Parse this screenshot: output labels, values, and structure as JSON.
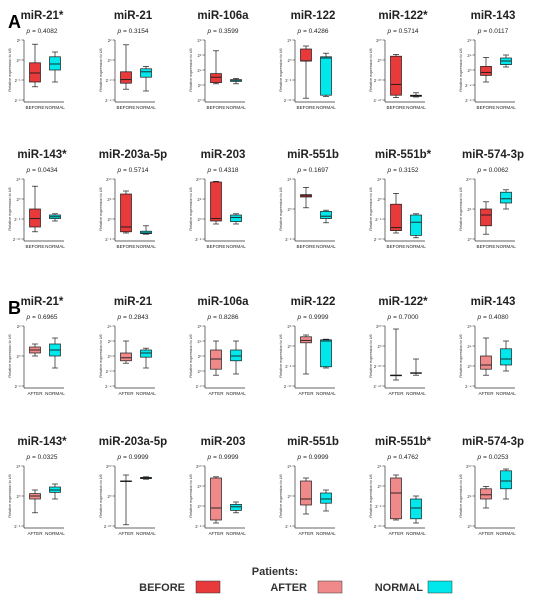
{
  "panels": [
    {
      "label": "A",
      "rows": [
        [
          {
            "title": "miR-21*",
            "p": "0.4082",
            "ylabel": "Relative expression to U6",
            "yticks": [
              "2¹",
              "2⁰",
              "2⁻¹",
              "2⁻²"
            ],
            "groups": [
              {
                "name": "BEFORE",
                "style": "before",
                "min": 0.22,
                "q1": 0.3,
                "median": 0.45,
                "q3": 0.62,
                "max": 0.93
              },
              {
                "name": "NORMAL",
                "style": "normal",
                "min": 0.3,
                "q1": 0.5,
                "median": 0.6,
                "q3": 0.72,
                "max": 0.8
              }
            ]
          },
          {
            "title": "miR-21",
            "p": "0.3154",
            "ylabel": "Relative expression to U6",
            "yticks": [
              "2²",
              "2⁰",
              "2⁻²",
              "2⁻⁴"
            ],
            "groups": [
              {
                "name": "BEFORE",
                "style": "before",
                "min": 0.18,
                "q1": 0.28,
                "median": 0.34,
                "q3": 0.47,
                "max": 0.92
              },
              {
                "name": "NORMAL",
                "style": "normal",
                "min": 0.15,
                "q1": 0.38,
                "median": 0.47,
                "q3": 0.52,
                "max": 0.56
              }
            ]
          },
          {
            "title": "miR-106a",
            "p": "0.3599",
            "ylabel": "Relative expression to U6",
            "yticks": [
              "2⁸",
              "2⁶",
              "2⁴",
              "2²",
              "2⁰"
            ],
            "groups": [
              {
                "name": "BEFORE",
                "style": "before",
                "min": 0.27,
                "q1": 0.29,
                "median": 0.38,
                "q3": 0.44,
                "max": 0.82
              },
              {
                "name": "NORMAL",
                "style": "normal",
                "min": 0.27,
                "q1": 0.31,
                "median": 0.33,
                "q3": 0.34,
                "max": 0.36
              }
            ]
          },
          {
            "title": "miR-122",
            "p": "0.4286",
            "ylabel": "Relative expression to U6",
            "yticks": [
              "2⁵",
              "2⁰",
              "2⁻⁵",
              "2⁻¹⁰"
            ],
            "groups": [
              {
                "name": "BEFORE",
                "style": "before",
                "min": 0.03,
                "q1": 0.65,
                "median": 0.65,
                "q3": 0.85,
                "max": 0.9
              },
              {
                "name": "NORMAL",
                "style": "normal",
                "min": 0.06,
                "q1": 0.08,
                "median": 0.7,
                "q3": 0.72,
                "max": 0.78
              }
            ]
          },
          {
            "title": "miR-122*",
            "p": "0.5714",
            "ylabel": "Relative expression to U6",
            "yticks": [
              "2²⁰",
              "2⁰",
              "2⁻²⁰",
              "2⁻⁴⁰"
            ],
            "groups": [
              {
                "name": "BEFORE",
                "style": "before",
                "min": 0.04,
                "q1": 0.08,
                "median": 0.26,
                "q3": 0.73,
                "max": 0.76
              },
              {
                "name": "NORMAL",
                "style": "normal",
                "min": 0.05,
                "q1": 0.06,
                "median": 0.07,
                "q3": 0.08,
                "max": 0.12
              }
            ]
          },
          {
            "title": "miR-143",
            "p": "0.0117",
            "ylabel": "Relative expression to U6",
            "yticks": [
              "2⁸",
              "2⁴",
              "2⁰",
              "2⁻⁴",
              "2⁻⁸"
            ],
            "groups": [
              {
                "name": "BEFORE",
                "style": "before",
                "min": 0.3,
                "q1": 0.41,
                "median": 0.46,
                "q3": 0.56,
                "max": 0.71
              },
              {
                "name": "NORMAL",
                "style": "normal",
                "min": 0.55,
                "q1": 0.59,
                "median": 0.65,
                "q3": 0.7,
                "max": 0.75
              }
            ]
          }
        ],
        [
          {
            "title": "miR-143*",
            "p": "0.0434",
            "ylabel": "Relative expression to U6",
            "yticks": [
              "2⁵",
              "2⁰",
              "2⁻⁵",
              "2⁻¹⁰"
            ],
            "groups": [
              {
                "name": "BEFORE",
                "style": "before",
                "min": 0.12,
                "q1": 0.2,
                "median": 0.34,
                "q3": 0.5,
                "max": 0.88
              },
              {
                "name": "NORMAL",
                "style": "normal",
                "min": 0.3,
                "q1": 0.34,
                "median": 0.37,
                "q3": 0.4,
                "max": 0.42
              }
            ]
          },
          {
            "title": "miR-203a-5p",
            "p": "0.5714",
            "ylabel": "Relative expression to U6",
            "yticks": [
              "2¹⁰",
              "2⁵",
              "2⁰",
              "2⁻⁵"
            ],
            "groups": [
              {
                "name": "BEFORE",
                "style": "before",
                "min": 0.1,
                "q1": 0.12,
                "median": 0.2,
                "q3": 0.75,
                "max": 0.8
              },
              {
                "name": "NORMAL",
                "style": "normal",
                "min": 0.08,
                "q1": 0.09,
                "median": 0.1,
                "q3": 0.13,
                "max": 0.22
              }
            ]
          },
          {
            "title": "miR-203",
            "p": "0.4318",
            "ylabel": "Relative expression to U6",
            "yticks": [
              "2¹⁰",
              "2⁵",
              "2⁰",
              "2⁻⁵"
            ],
            "groups": [
              {
                "name": "BEFORE",
                "style": "before",
                "min": 0.25,
                "q1": 0.3,
                "median": 0.34,
                "q3": 0.95,
                "max": 0.96
              },
              {
                "name": "NORMAL",
                "style": "normal",
                "min": 0.25,
                "q1": 0.29,
                "median": 0.36,
                "q3": 0.4,
                "max": 0.42
              }
            ]
          },
          {
            "title": "miR-551b",
            "p": "0.1697",
            "ylabel": "Relative expression to U6",
            "yticks": [
              "2⁵",
              "2⁰",
              "2⁻⁵"
            ],
            "groups": [
              {
                "name": "BEFORE",
                "style": "before",
                "min": 0.52,
                "q1": 0.7,
                "median": 0.72,
                "q3": 0.74,
                "max": 0.86
              },
              {
                "name": "NORMAL",
                "style": "normal",
                "min": 0.27,
                "q1": 0.34,
                "median": 0.38,
                "q3": 0.46,
                "max": 0.48
              }
            ]
          },
          {
            "title": "miR-551b*",
            "p": "0.3152",
            "ylabel": "Relative expression to U6",
            "yticks": [
              "2⁵",
              "2⁰",
              "2⁻⁵",
              "2⁻¹⁰"
            ],
            "groups": [
              {
                "name": "BEFORE",
                "style": "before",
                "min": 0.1,
                "q1": 0.14,
                "median": 0.19,
                "q3": 0.58,
                "max": 0.76
              },
              {
                "name": "NORMAL",
                "style": "normal",
                "min": 0.02,
                "q1": 0.06,
                "median": 0.28,
                "q3": 0.4,
                "max": 0.42
              }
            ]
          },
          {
            "title": "miR-574-3p",
            "p": "0.0062",
            "ylabel": "Relative expression to U6",
            "yticks": [
              "2¹⁰",
              "2⁵",
              "2⁰"
            ],
            "groups": [
              {
                "name": "BEFORE",
                "style": "before",
                "min": 0.08,
                "q1": 0.22,
                "median": 0.4,
                "q3": 0.5,
                "max": 0.62
              },
              {
                "name": "NORMAL",
                "style": "normal",
                "min": 0.5,
                "q1": 0.6,
                "median": 0.67,
                "q3": 0.78,
                "max": 0.82
              }
            ]
          }
        ]
      ]
    },
    {
      "label": "B",
      "rows": [
        [
          {
            "title": "miR-21*",
            "p": "0.6965",
            "ylabel": "Relative expression to U6",
            "yticks": [
              "2²",
              "2⁰",
              "2⁻²"
            ],
            "groups": [
              {
                "name": "AFTER",
                "style": "after",
                "min": 0.5,
                "q1": 0.55,
                "median": 0.6,
                "q3": 0.65,
                "max": 0.7
              },
              {
                "name": "NORMAL",
                "style": "normal",
                "min": 0.3,
                "q1": 0.5,
                "median": 0.6,
                "q3": 0.7,
                "max": 0.8
              }
            ]
          },
          {
            "title": "miR-21",
            "p": "0.2843",
            "ylabel": "Relative expression to U6",
            "yticks": [
              "2⁴",
              "2²",
              "2⁰",
              "2⁻²",
              "2⁻⁴"
            ],
            "groups": [
              {
                "name": "AFTER",
                "style": "after",
                "min": 0.38,
                "q1": 0.42,
                "median": 0.47,
                "q3": 0.55,
                "max": 0.75
              },
              {
                "name": "NORMAL",
                "style": "normal",
                "min": 0.3,
                "q1": 0.48,
                "median": 0.55,
                "q3": 0.6,
                "max": 0.63
              }
            ]
          },
          {
            "title": "miR-106a",
            "p": "0.8286",
            "ylabel": "Relative expression to U6",
            "yticks": [
              "2⁶",
              "2⁴",
              "2²",
              "2⁰",
              "2⁻²"
            ],
            "groups": [
              {
                "name": "AFTER",
                "style": "after",
                "min": 0.18,
                "q1": 0.28,
                "median": 0.45,
                "q3": 0.6,
                "max": 0.75
              },
              {
                "name": "NORMAL",
                "style": "normal",
                "min": 0.2,
                "q1": 0.42,
                "median": 0.5,
                "q3": 0.6,
                "max": 0.75
              }
            ]
          },
          {
            "title": "miR-122",
            "p": "0.9999",
            "ylabel": "Relative expression to U6",
            "yticks": [
              "2⁵",
              "2⁰",
              "2⁻⁵",
              "2⁻¹⁰"
            ],
            "groups": [
              {
                "name": "AFTER",
                "style": "after",
                "min": 0.2,
                "q1": 0.72,
                "median": 0.76,
                "q3": 0.82,
                "max": 0.85
              },
              {
                "name": "NORMAL",
                "style": "normal",
                "min": 0.3,
                "q1": 0.32,
                "median": 0.75,
                "q3": 0.77,
                "max": 0.78
              }
            ]
          },
          {
            "title": "miR-122*",
            "p": "0.7000",
            "ylabel": "Relative expression to U6",
            "yticks": [
              "2²⁰",
              "2⁰",
              "2⁻²⁰",
              "2⁻⁴⁰"
            ],
            "groups": [
              {
                "name": "AFTER",
                "style": "after",
                "min": 0.1,
                "q1": 0.18,
                "median": 0.18,
                "q3": 0.18,
                "max": 0.95
              },
              {
                "name": "NORMAL",
                "style": "normal",
                "min": 0.18,
                "q1": 0.22,
                "median": 0.22,
                "q3": 0.22,
                "max": 0.45
              }
            ]
          },
          {
            "title": "miR-143",
            "p": "0.4080",
            "ylabel": "Relative expression to U6",
            "yticks": [
              "2⁸",
              "2⁴",
              "2⁰",
              "2⁻⁴"
            ],
            "groups": [
              {
                "name": "AFTER",
                "style": "after",
                "min": 0.18,
                "q1": 0.28,
                "median": 0.35,
                "q3": 0.5,
                "max": 0.8
              },
              {
                "name": "NORMAL",
                "style": "normal",
                "min": 0.25,
                "q1": 0.35,
                "median": 0.45,
                "q3": 0.62,
                "max": 0.75
              }
            ]
          }
        ],
        [
          {
            "title": "miR-143*",
            "p": "0.0325",
            "ylabel": "Relative expression to U6",
            "yticks": [
              "2⁵",
              "2⁰",
              "2⁻⁵"
            ],
            "groups": [
              {
                "name": "AFTER",
                "style": "after",
                "min": 0.22,
                "q1": 0.45,
                "median": 0.5,
                "q3": 0.54,
                "max": 0.6
              },
              {
                "name": "NORMAL",
                "style": "normal",
                "min": 0.45,
                "q1": 0.56,
                "median": 0.6,
                "q3": 0.65,
                "max": 0.7
              }
            ]
          },
          {
            "title": "miR-203a-5p",
            "p": "0.9999",
            "ylabel": "Relative expression to U6",
            "yticks": [
              "2²⁰",
              "2⁰",
              "2⁻²⁰"
            ],
            "groups": [
              {
                "name": "AFTER",
                "style": "after",
                "min": 0.02,
                "q1": 0.75,
                "median": 0.75,
                "q3": 0.75,
                "max": 0.85
              },
              {
                "name": "NORMAL",
                "style": "normal",
                "min": 0.78,
                "q1": 0.79,
                "median": 0.8,
                "q3": 0.81,
                "max": 0.82
              }
            ]
          },
          {
            "title": "miR-203",
            "p": "0.9999",
            "ylabel": "Relative expression to U6",
            "yticks": [
              "2¹⁰",
              "2⁵",
              "2⁰",
              "2⁻⁵"
            ],
            "groups": [
              {
                "name": "AFTER",
                "style": "after",
                "min": 0.05,
                "q1": 0.1,
                "median": 0.3,
                "q3": 0.8,
                "max": 0.82
              },
              {
                "name": "NORMAL",
                "style": "normal",
                "min": 0.22,
                "q1": 0.26,
                "median": 0.32,
                "q3": 0.36,
                "max": 0.4
              }
            ]
          },
          {
            "title": "miR-551b",
            "p": "0.9999",
            "ylabel": "Relative expression to U6",
            "yticks": [
              "2⁵",
              "2⁰",
              "2⁻⁵"
            ],
            "groups": [
              {
                "name": "AFTER",
                "style": "after",
                "min": 0.2,
                "q1": 0.35,
                "median": 0.45,
                "q3": 0.75,
                "max": 0.8
              },
              {
                "name": "NORMAL",
                "style": "normal",
                "min": 0.25,
                "q1": 0.38,
                "median": 0.45,
                "q3": 0.55,
                "max": 0.6
              }
            ]
          },
          {
            "title": "miR-551b*",
            "p": "0.4762",
            "ylabel": "Relative expression to U6",
            "yticks": [
              "2⁵",
              "2⁰",
              "2⁻⁵",
              "2⁻¹⁰"
            ],
            "groups": [
              {
                "name": "AFTER",
                "style": "after",
                "min": 0.1,
                "q1": 0.12,
                "median": 0.55,
                "q3": 0.8,
                "max": 0.85
              },
              {
                "name": "NORMAL",
                "style": "normal",
                "min": 0.05,
                "q1": 0.12,
                "median": 0.3,
                "q3": 0.45,
                "max": 0.5
              }
            ]
          },
          {
            "title": "miR-574-3p",
            "p": "0.0253",
            "ylabel": "Relative expression to U6",
            "yticks": [
              "2¹⁰",
              "2⁵",
              "2⁰"
            ],
            "groups": [
              {
                "name": "AFTER",
                "style": "after",
                "min": 0.3,
                "q1": 0.45,
                "median": 0.52,
                "q3": 0.62,
                "max": 0.66
              },
              {
                "name": "NORMAL",
                "style": "normal",
                "min": 0.45,
                "q1": 0.62,
                "median": 0.75,
                "q3": 0.92,
                "max": 0.95
              }
            ]
          }
        ]
      ]
    }
  ],
  "legend": {
    "title": "Patients:",
    "items": [
      {
        "label": "BEFORE",
        "color": "#e8393b"
      },
      {
        "label": "AFTER",
        "color": "#f08a8a"
      },
      {
        "label": "NORMAL",
        "color": "#00e8ec"
      }
    ]
  },
  "colors": {
    "before": "#e8393b",
    "after": "#f08a8a",
    "normal": "#00e8ec",
    "line": "#1a1a1a"
  },
  "p_prefix": "p = "
}
